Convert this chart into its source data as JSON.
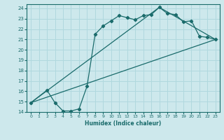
{
  "xlabel": "Humidex (Indice chaleur)",
  "ylabel": "",
  "bg_color": "#cde8ec",
  "line_color": "#1a6b6b",
  "grid_color": "#b0d8de",
  "xlim": [
    -0.5,
    23.5
  ],
  "ylim": [
    14,
    24.4
  ],
  "xticks": [
    0,
    1,
    2,
    3,
    4,
    5,
    6,
    7,
    8,
    9,
    10,
    11,
    12,
    13,
    14,
    15,
    16,
    17,
    18,
    19,
    20,
    21,
    22,
    23
  ],
  "yticks": [
    14,
    15,
    16,
    17,
    18,
    19,
    20,
    21,
    22,
    23,
    24
  ],
  "line1_x": [
    0,
    2,
    3,
    4,
    5,
    6,
    7,
    8,
    9,
    10,
    11,
    12,
    13,
    14,
    15,
    16,
    17,
    18,
    19,
    20,
    21,
    22,
    23
  ],
  "line1_y": [
    14.9,
    16.1,
    14.9,
    14.1,
    14.1,
    14.3,
    16.5,
    21.5,
    22.3,
    22.8,
    23.3,
    23.1,
    22.9,
    23.3,
    23.4,
    24.1,
    23.5,
    23.4,
    22.7,
    22.8,
    21.3,
    21.2,
    21.0
  ],
  "line2_x": [
    0,
    23
  ],
  "line2_y": [
    14.9,
    21.0
  ],
  "line3_x": [
    0,
    16,
    23
  ],
  "line3_y": [
    14.9,
    24.1,
    21.0
  ]
}
